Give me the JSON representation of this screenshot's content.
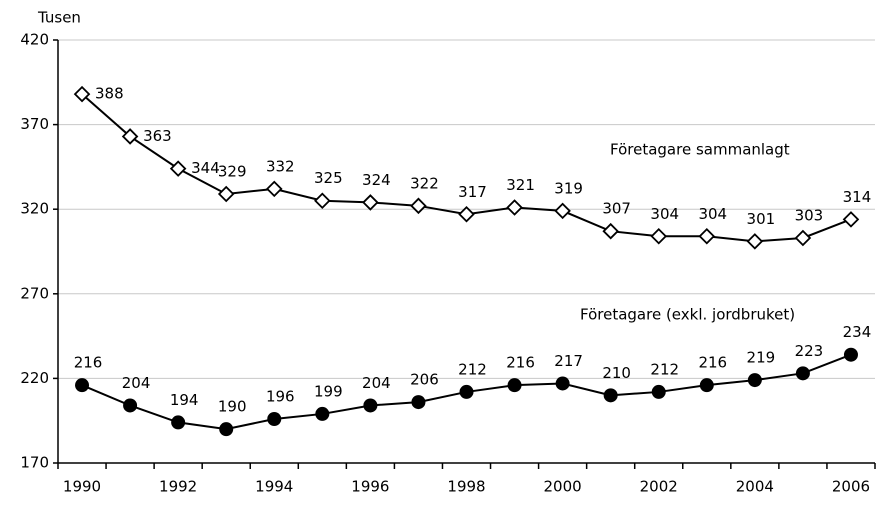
{
  "chart_data": {
    "type": "line",
    "y_label": "Tusen",
    "categories": [
      "1990",
      null,
      "1992",
      null,
      "1994",
      null,
      "1996",
      null,
      "1998",
      null,
      "2000",
      null,
      "2002",
      null,
      "2004",
      null,
      "2006"
    ],
    "series": [
      {
        "name": "Företagare sammanlagt",
        "color": "#000000",
        "marker": "diamond",
        "values": [
          388,
          363,
          344,
          329,
          332,
          325,
          324,
          322,
          317,
          321,
          319,
          307,
          304,
          304,
          301,
          303,
          314
        ]
      },
      {
        "name": "Företagare (exkl. jordbruket)",
        "color": "#000000",
        "marker": "circle",
        "values": [
          216,
          204,
          194,
          190,
          196,
          199,
          204,
          206,
          212,
          216,
          217,
          210,
          212,
          216,
          219,
          223,
          234
        ]
      }
    ],
    "ylim": [
      170,
      420
    ],
    "yticks": [
      170,
      220,
      270,
      320,
      370,
      420
    ],
    "grid": true
  }
}
